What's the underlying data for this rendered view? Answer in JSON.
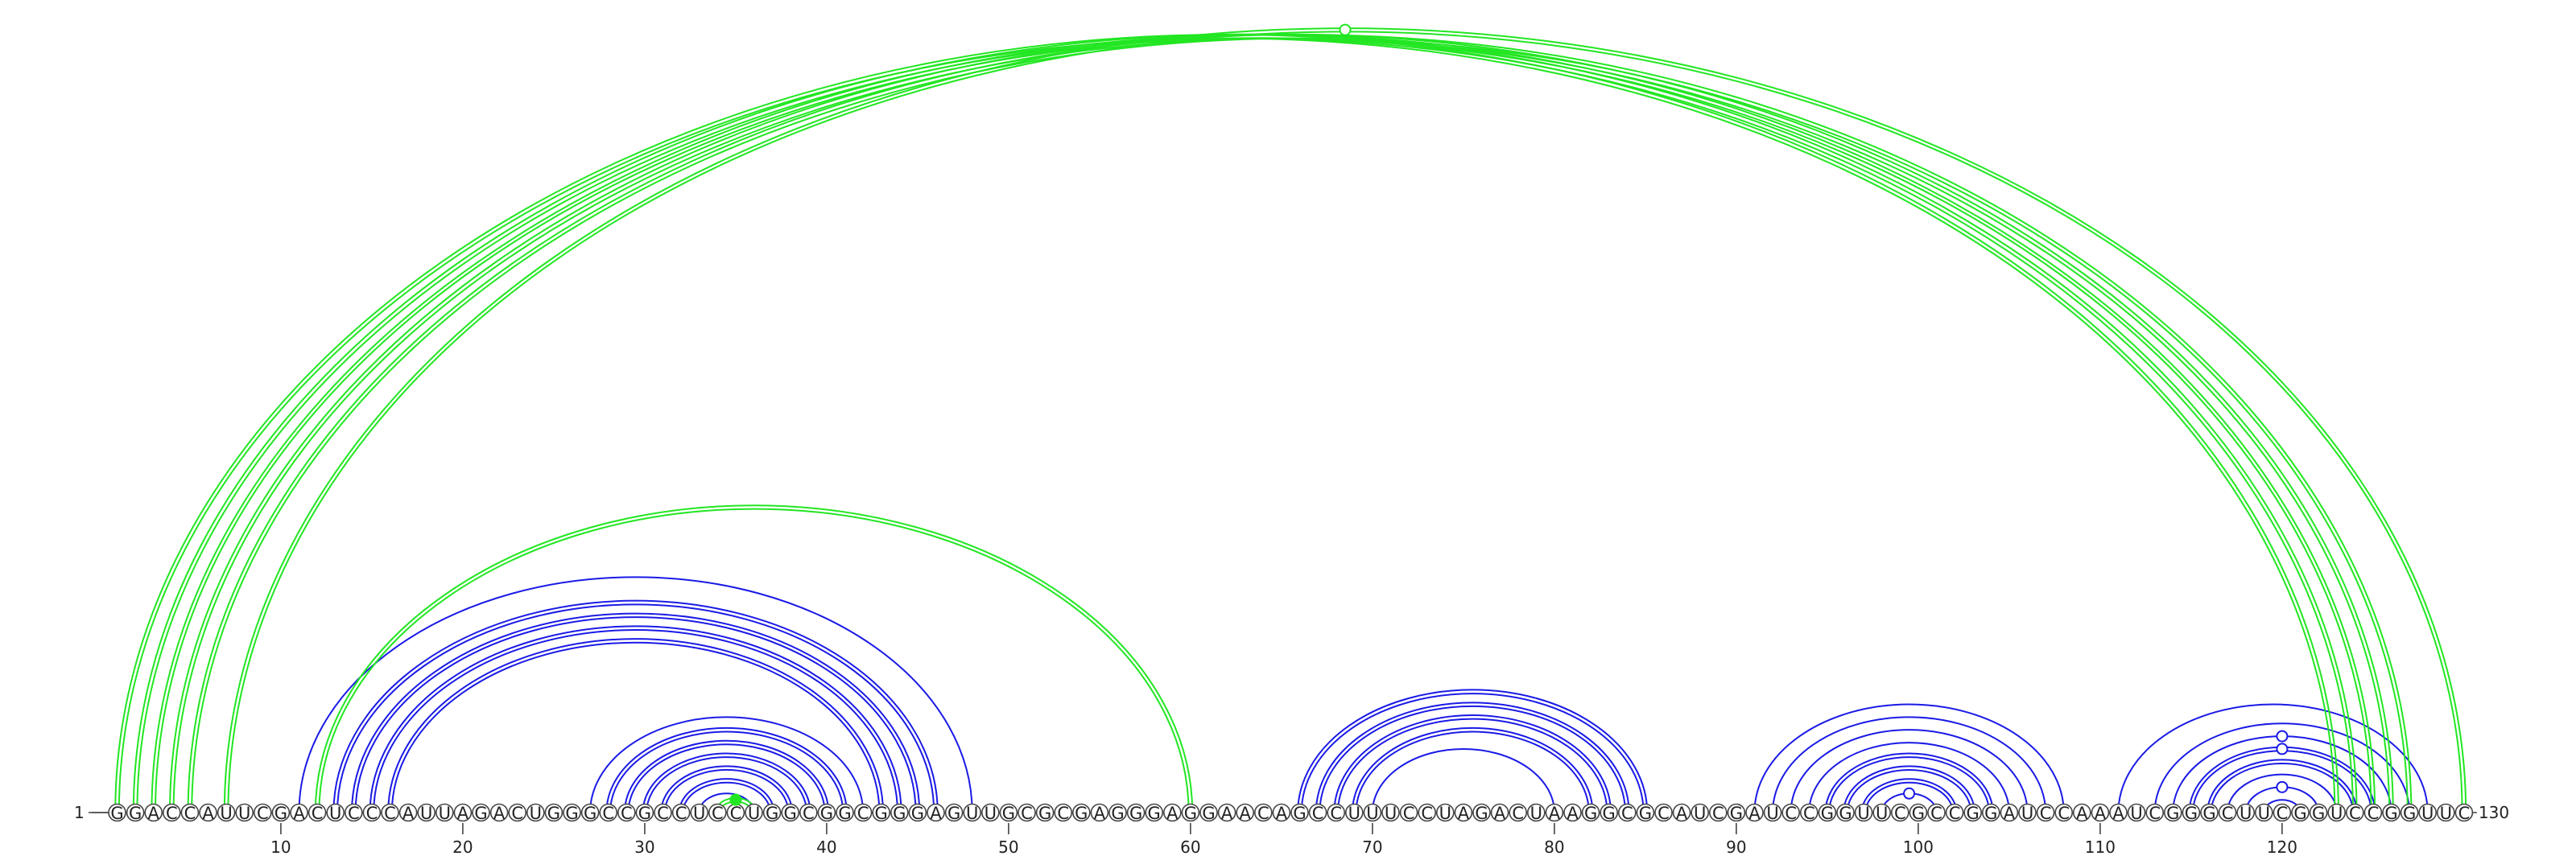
{
  "sequence": "GGACCAUUCGACUCCCAUUAGACUGGGCCGCCUCCUGGCGGCGGGAGUUGCGCGAGGGAGGAACAGCCUUUCCUAGACUAAGGCGCAUCGAUCCGGUUCGCCGGAUCCAAAUCGGGCUUCGGUCCGGUUC",
  "start_label": "1",
  "end_label": "130",
  "ticks": [
    "10",
    "20",
    "30",
    "40",
    "50",
    "60",
    "70",
    "80",
    "90",
    "100",
    "110",
    "120"
  ],
  "colors": {
    "primary_arcs": "#1a1ae6",
    "secondary_arcs": "#22e622",
    "outline": "#444444"
  },
  "arc_groups": [
    {
      "color": "primary",
      "pairs": [
        [
          11,
          48
        ],
        [
          13,
          46
        ],
        [
          14,
          45
        ],
        [
          15,
          44
        ],
        [
          16,
          43
        ]
      ],
      "double": [
        13,
        14,
        15,
        16
      ]
    },
    {
      "color": "primary",
      "pairs": [
        [
          27,
          42
        ],
        [
          28,
          41
        ],
        [
          29,
          40
        ],
        [
          30,
          39
        ],
        [
          31,
          38
        ],
        [
          32,
          37
        ],
        [
          33,
          36
        ]
      ],
      "double": [
        28,
        29,
        30,
        31,
        32
      ]
    },
    {
      "color": "primary",
      "pairs": [
        [
          66,
          85
        ],
        [
          67,
          84
        ],
        [
          68,
          83
        ],
        [
          69,
          82
        ],
        [
          70,
          80
        ]
      ],
      "double": [
        66,
        67,
        68,
        69
      ]
    },
    {
      "color": "primary",
      "pairs": [
        [
          91,
          108
        ],
        [
          92,
          107
        ],
        [
          93,
          106
        ],
        [
          94,
          105
        ],
        [
          95,
          104
        ],
        [
          96,
          103
        ],
        [
          97,
          102
        ],
        [
          98,
          101
        ]
      ],
      "double": [
        95,
        96,
        97
      ]
    },
    {
      "color": "primary",
      "pairs": [
        [
          111,
          128
        ],
        [
          113,
          127
        ],
        [
          114,
          126
        ],
        [
          115,
          125
        ],
        [
          116,
          124
        ],
        [
          117,
          123
        ],
        [
          118,
          122
        ],
        [
          119,
          121
        ]
      ],
      "double": [
        115,
        116
      ]
    },
    {
      "color": "secondary",
      "pairs": [
        [
          1,
          123
        ],
        [
          2,
          124
        ],
        [
          3,
          125
        ],
        [
          4,
          126
        ],
        [
          5,
          127
        ],
        [
          7,
          130
        ]
      ],
      "double": [
        1,
        2,
        3,
        4,
        5,
        7
      ]
    },
    {
      "color": "secondary",
      "pairs": [
        [
          12,
          60
        ]
      ],
      "double": [
        12
      ]
    },
    {
      "color": "secondary",
      "pairs": [
        [
          34,
          36
        ]
      ],
      "double": [
        34
      ]
    }
  ],
  "markers": [
    {
      "at": [
        34,
        36
      ],
      "color": "secondary",
      "filled": true
    },
    {
      "at": [
        7,
        130
      ],
      "color": "secondary",
      "filled": false
    },
    {
      "at": [
        118,
        122
      ],
      "color": "primary",
      "filled": false
    },
    {
      "at": [
        114,
        126
      ],
      "color": "primary",
      "filled": false
    },
    {
      "at": [
        115,
        125
      ],
      "color": "primary",
      "filled": false
    },
    {
      "at": [
        98,
        101
      ],
      "color": "primary",
      "filled": false
    }
  ]
}
